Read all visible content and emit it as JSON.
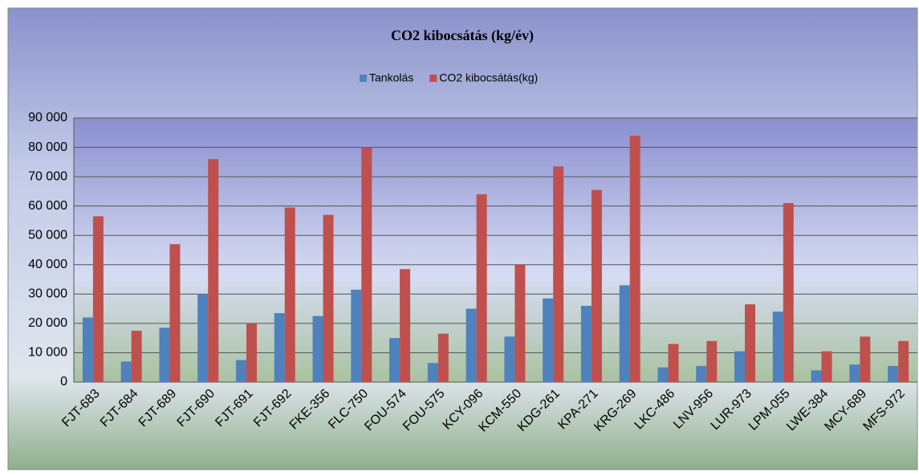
{
  "chart_data": {
    "type": "bar",
    "title": "CO2 kibocsátás (kg/év)",
    "categories": [
      "FJT-683",
      "FJT-684",
      "FJT-689",
      "FJT-690",
      "FJT-691",
      "FJT-692",
      "FKE-356",
      "FLC-750",
      "FOU-574",
      "FOU-575",
      "KCY-096",
      "KCM-550",
      "KDG-261",
      "KPA-271",
      "KRG-269",
      "LKC-486",
      "LNV-956",
      "LUR-973",
      "LPM-055",
      "LWE-384",
      "MCY-689",
      "MFS-972"
    ],
    "series": [
      {
        "name": "Tankolás",
        "color": "#4f81bd",
        "values": [
          22000,
          7000,
          18500,
          30000,
          7500,
          23500,
          22500,
          31500,
          15000,
          6500,
          25000,
          15500,
          28500,
          26000,
          33000,
          5000,
          5500,
          10500,
          24000,
          4000,
          6000,
          5500
        ]
      },
      {
        "name": "CO2 kibocsátás(kg)",
        "color": "#c0504d",
        "values": [
          56500,
          17500,
          47000,
          76000,
          20000,
          59500,
          57000,
          80000,
          38500,
          16500,
          64000,
          40000,
          73500,
          65500,
          84000,
          13000,
          14000,
          26500,
          61000,
          10500,
          15500,
          14000
        ]
      }
    ],
    "ylim": [
      0,
      90000
    ],
    "yticks": [
      {
        "value": 0,
        "label": "0"
      },
      {
        "value": 10000,
        "label": "10 000"
      },
      {
        "value": 20000,
        "label": "20 000"
      },
      {
        "value": 30000,
        "label": "30 000"
      },
      {
        "value": 40000,
        "label": "40 000"
      },
      {
        "value": 50000,
        "label": "50 000"
      },
      {
        "value": 60000,
        "label": "60 000"
      },
      {
        "value": 70000,
        "label": "70 000"
      },
      {
        "value": 80000,
        "label": "80 000"
      },
      {
        "value": 90000,
        "label": "90 000"
      }
    ],
    "grid": true,
    "legend": "top"
  }
}
